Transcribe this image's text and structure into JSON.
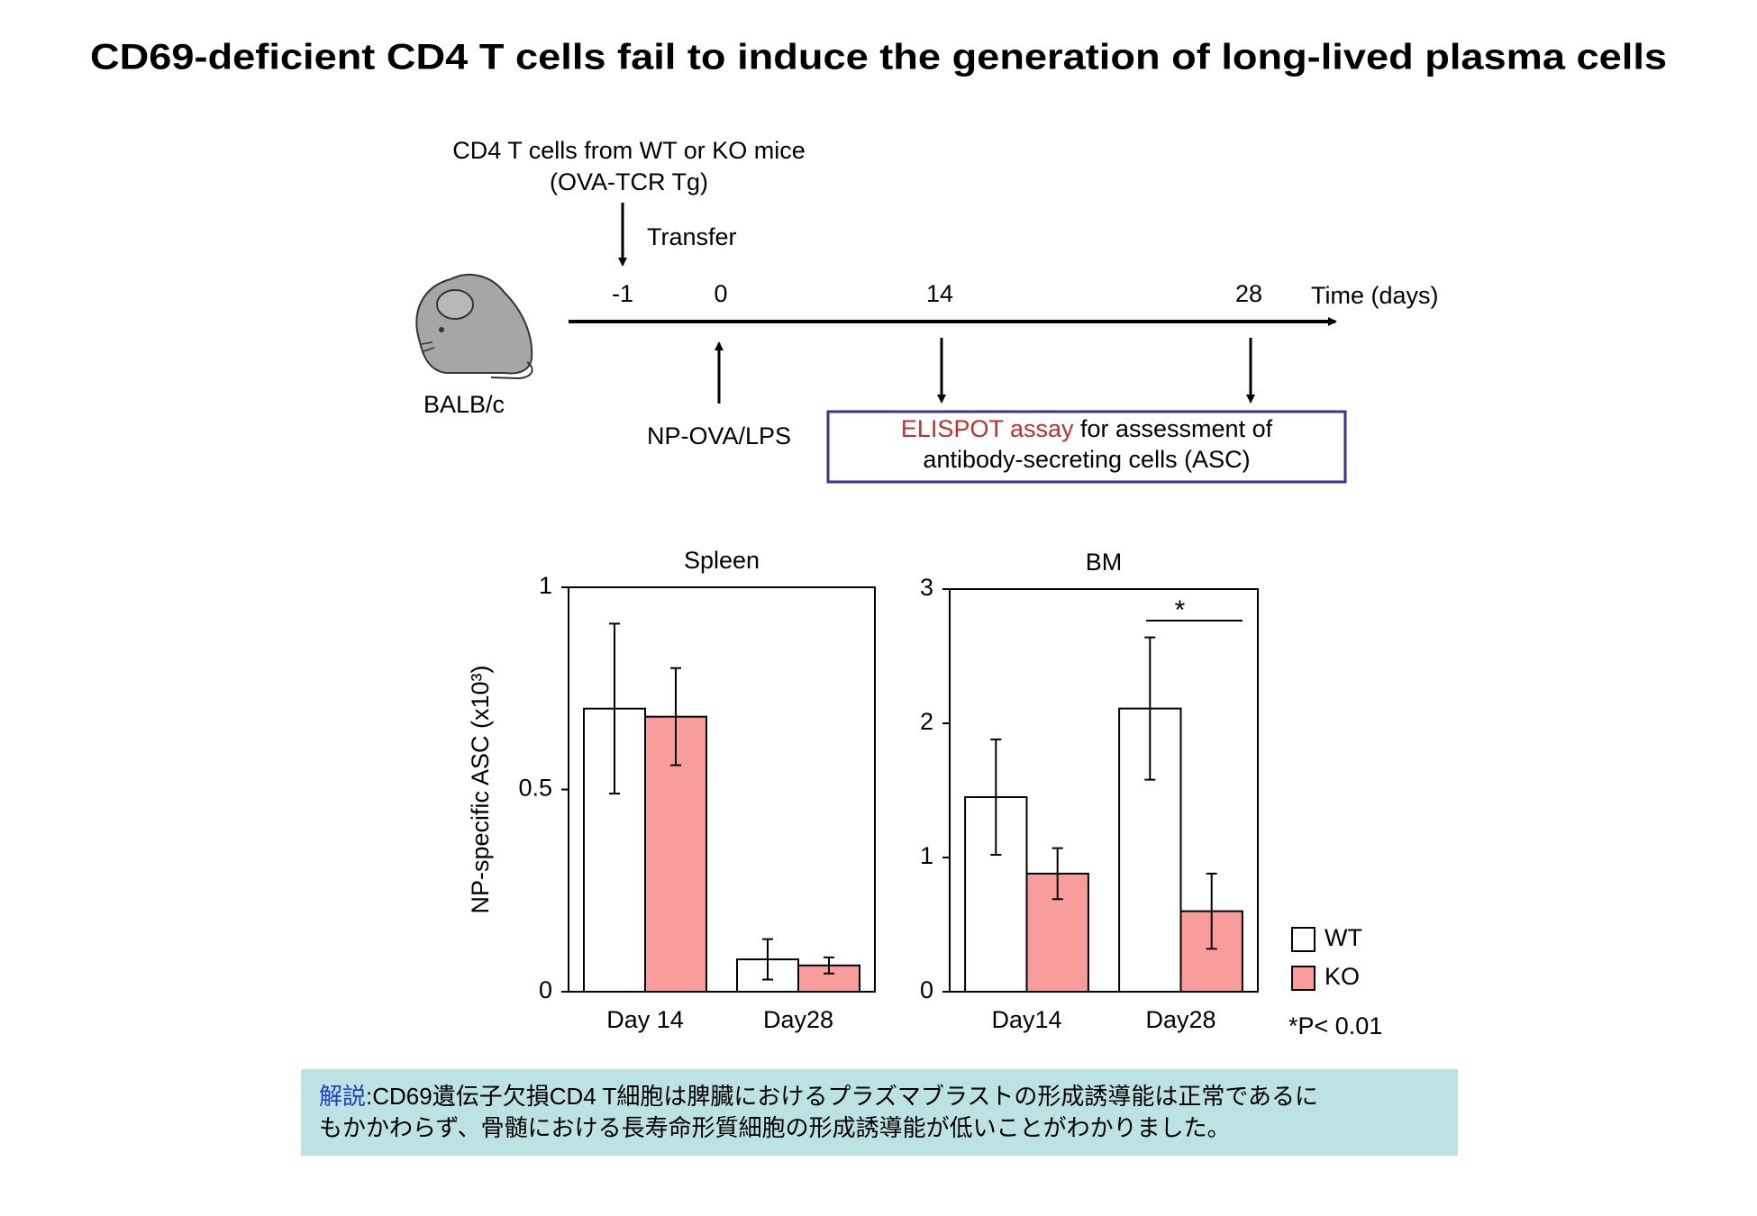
{
  "title": "CD69-deficient CD4 T cells fail to induce the generation of long-lived plasma cells",
  "diagram": {
    "donor": "CD4 T cells from WT or KO mice",
    "donor_sub": "(OVA-TCR Tg)",
    "transfer": "Transfer",
    "timepoints": [
      "-1",
      "0",
      "14",
      "28"
    ],
    "axis_label": "Time (days)",
    "mouse": "BALB/c",
    "immunization": "NP-OVA/LPS",
    "assay_highlight": "ELISPOT assay",
    "assay_rest": " for assessment of",
    "assay_line2": "antibody-secreting cells (ASC)"
  },
  "chart_data": [
    {
      "type": "bar",
      "title": "Spleen",
      "y_label": "NP-specific ASC (x10³)",
      "categories": [
        "Day 14",
        "Day28"
      ],
      "series": [
        {
          "name": "WT",
          "color": "#ffffff",
          "values": [
            0.7,
            0.08
          ],
          "errors": [
            0.21,
            0.05
          ]
        },
        {
          "name": "KO",
          "color": "#f89c9c",
          "values": [
            0.68,
            0.065
          ],
          "errors": [
            0.12,
            0.02
          ]
        }
      ],
      "ylim": [
        0,
        1
      ],
      "yticks": [
        0,
        0.5,
        1
      ]
    },
    {
      "type": "bar",
      "title": "BM",
      "categories": [
        "Day14",
        "Day28"
      ],
      "series": [
        {
          "name": "WT",
          "color": "#ffffff",
          "values": [
            1.45,
            2.11
          ],
          "errors": [
            0.43,
            0.53
          ]
        },
        {
          "name": "KO",
          "color": "#f89c9c",
          "values": [
            0.88,
            0.6
          ],
          "errors": [
            0.19,
            0.28
          ]
        }
      ],
      "ylim": [
        0,
        3
      ],
      "yticks": [
        0,
        1,
        2,
        3
      ],
      "annotation": "*",
      "note": "*P< 0.01"
    }
  ],
  "explanation": {
    "label": "解説",
    "lines": [
      ":CD69遺伝子欠損CD4 T細胞は脾臓におけるプラズマブラストの形成誘導能は正常であるに",
      "もかかわらず、骨髄における長寿命形質細胞の形成誘導能が低いことがわかりました。"
    ]
  }
}
